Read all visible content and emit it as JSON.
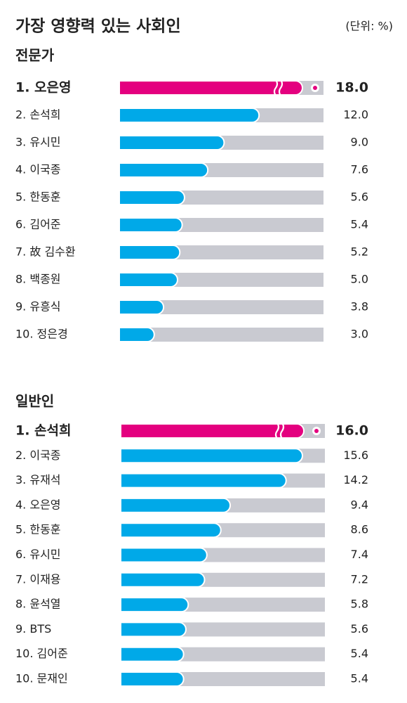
{
  "header": {
    "title": "가장 영향력 있는 사회인",
    "unit": "(단위: %)"
  },
  "chart_data": [
    {
      "type": "bar",
      "orientation": "horizontal",
      "title": "전문가",
      "color": "#00a9e8",
      "highlight_color": "#e4007f",
      "categories": [
        "1. 오은영",
        "2. 손석희",
        "3. 유시민",
        "4. 이국종",
        "5. 한동훈",
        "6. 김어준",
        "7. 故 김수환",
        "8. 백종원",
        "9. 유흥식",
        "10. 정은경"
      ],
      "values": [
        18,
        12,
        9,
        7.6,
        5.6,
        5.4,
        5.2,
        5,
        3.8,
        3
      ],
      "value_labels": [
        "18.0",
        "12.0",
        "9.0",
        "7.6",
        "5.6",
        "5.4",
        "5.2",
        "5.0",
        "3.8",
        "3.0"
      ]
    },
    {
      "type": "bar",
      "orientation": "horizontal",
      "title": "일반인",
      "color": "#00a9e8",
      "highlight_color": "#e4007f",
      "categories": [
        "1. 손석희",
        "2. 이국종",
        "3. 유재석",
        "4. 오은영",
        "5. 한동훈",
        "6. 유시민",
        "7. 이재용",
        "8. 윤석열",
        "9. BTS",
        "10. 김어준",
        "10. 문재인"
      ],
      "values": [
        16,
        15.6,
        14.2,
        9.4,
        8.6,
        7.4,
        7.2,
        5.8,
        5.6,
        5.4,
        5.4
      ],
      "value_labels": [
        "16.0",
        "15.6",
        "14.2",
        "9.4",
        "8.6",
        "7.4",
        "7.2",
        "5.8",
        "5.6",
        "5.4",
        "5.4"
      ]
    }
  ]
}
